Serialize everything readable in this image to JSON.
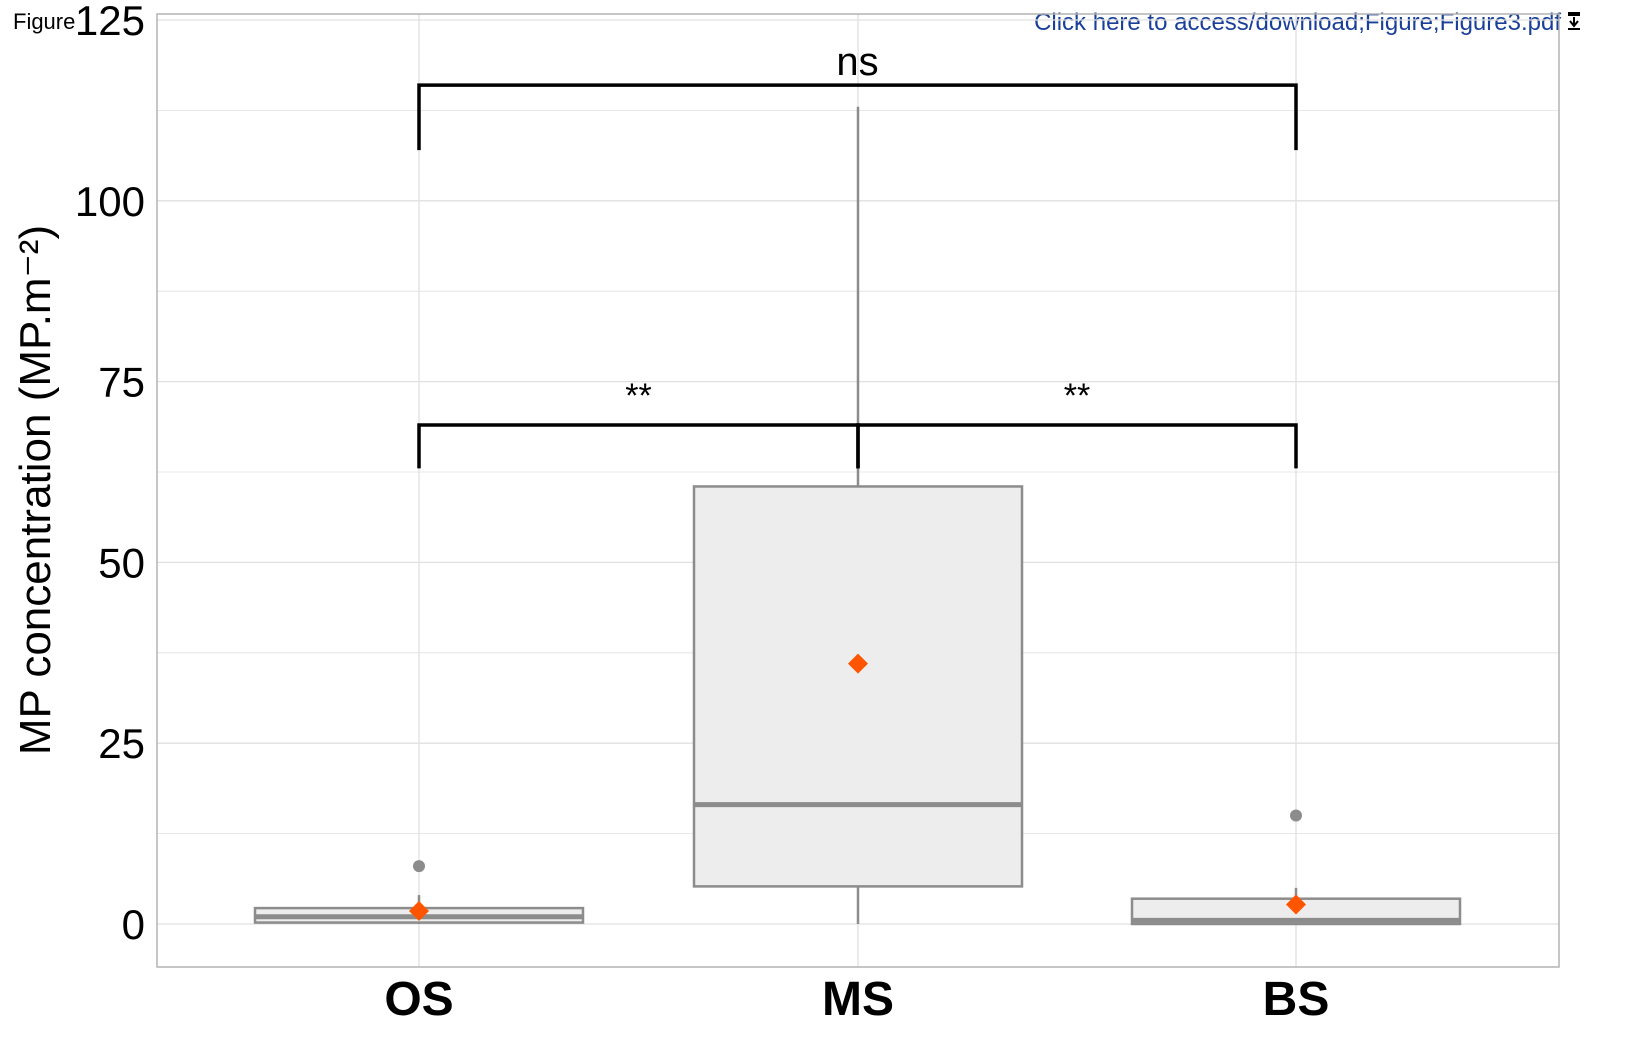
{
  "header": {
    "figure_label": "Figure",
    "download_link": "Click here to access/download;Figure;Figure3.pdf",
    "download_icon": "download-icon"
  },
  "chart_data": {
    "type": "box",
    "ylabel": "MP concentration (MP.m⁻²)",
    "xlabel": "",
    "ylim": [
      -6,
      127
    ],
    "yticks": [
      0,
      25,
      50,
      75,
      100,
      125
    ],
    "grid": true,
    "categories": [
      "OS",
      "MS",
      "BS"
    ],
    "boxes": [
      {
        "category": "OS",
        "min": 0,
        "q1": 0.2,
        "median": 1.0,
        "q3": 2.2,
        "max": 4.0,
        "mean": 1.8,
        "outliers": [
          8
        ]
      },
      {
        "category": "MS",
        "min": 0,
        "q1": 5.2,
        "median": 16.5,
        "q3": 60.5,
        "max": 113,
        "mean": 36,
        "outliers": []
      },
      {
        "category": "BS",
        "min": 0,
        "q1": 0,
        "median": 0.5,
        "q3": 3.5,
        "max": 5.0,
        "mean": 2.7,
        "outliers": [
          15
        ]
      }
    ],
    "significance": [
      {
        "from": "OS",
        "to": "BS",
        "label": "ns",
        "y": 116,
        "tick_bottom": 107
      },
      {
        "from": "OS",
        "to": "MS",
        "label": "**",
        "y": 69,
        "tick_bottom": 63
      },
      {
        "from": "MS",
        "to": "BS",
        "label": "**",
        "y": 69,
        "tick_bottom": 63
      }
    ],
    "colors": {
      "box_fill": "#ededed",
      "box_line": "#8c8c8c",
      "mean_marker": "#ff5500",
      "outlier": "#8c8c8c",
      "grid": "#e0e0e0",
      "bracket": "#000000"
    }
  }
}
